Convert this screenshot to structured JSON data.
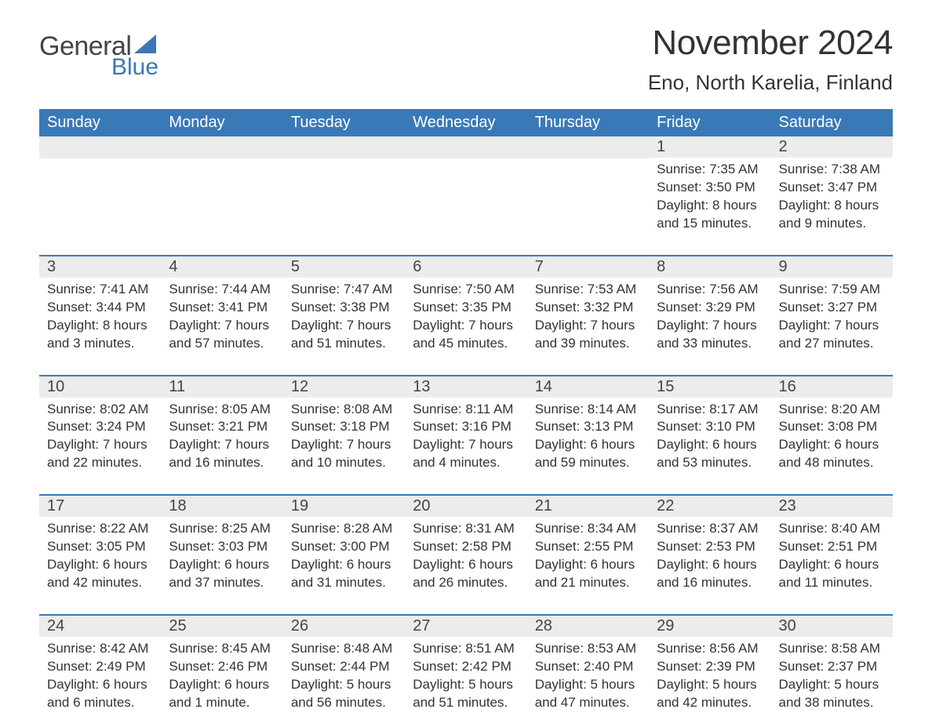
{
  "brand": {
    "general": "General",
    "blue": "Blue",
    "accent_color": "#3a79b7"
  },
  "title": {
    "month": "November 2024",
    "location": "Eno, North Karelia, Finland"
  },
  "header_bg": "#3a79b7",
  "day_num_bg": "#ececec",
  "day_headers": [
    "Sunday",
    "Monday",
    "Tuesday",
    "Wednesday",
    "Thursday",
    "Friday",
    "Saturday"
  ],
  "weeks": [
    [
      {
        "empty": true
      },
      {
        "empty": true
      },
      {
        "empty": true
      },
      {
        "empty": true
      },
      {
        "empty": true
      },
      {
        "num": "1",
        "sunrise": "Sunrise: 7:35 AM",
        "sunset": "Sunset: 3:50 PM",
        "dl1": "Daylight: 8 hours",
        "dl2": "and 15 minutes."
      },
      {
        "num": "2",
        "sunrise": "Sunrise: 7:38 AM",
        "sunset": "Sunset: 3:47 PM",
        "dl1": "Daylight: 8 hours",
        "dl2": "and 9 minutes."
      }
    ],
    [
      {
        "num": "3",
        "sunrise": "Sunrise: 7:41 AM",
        "sunset": "Sunset: 3:44 PM",
        "dl1": "Daylight: 8 hours",
        "dl2": "and 3 minutes."
      },
      {
        "num": "4",
        "sunrise": "Sunrise: 7:44 AM",
        "sunset": "Sunset: 3:41 PM",
        "dl1": "Daylight: 7 hours",
        "dl2": "and 57 minutes."
      },
      {
        "num": "5",
        "sunrise": "Sunrise: 7:47 AM",
        "sunset": "Sunset: 3:38 PM",
        "dl1": "Daylight: 7 hours",
        "dl2": "and 51 minutes."
      },
      {
        "num": "6",
        "sunrise": "Sunrise: 7:50 AM",
        "sunset": "Sunset: 3:35 PM",
        "dl1": "Daylight: 7 hours",
        "dl2": "and 45 minutes."
      },
      {
        "num": "7",
        "sunrise": "Sunrise: 7:53 AM",
        "sunset": "Sunset: 3:32 PM",
        "dl1": "Daylight: 7 hours",
        "dl2": "and 39 minutes."
      },
      {
        "num": "8",
        "sunrise": "Sunrise: 7:56 AM",
        "sunset": "Sunset: 3:29 PM",
        "dl1": "Daylight: 7 hours",
        "dl2": "and 33 minutes."
      },
      {
        "num": "9",
        "sunrise": "Sunrise: 7:59 AM",
        "sunset": "Sunset: 3:27 PM",
        "dl1": "Daylight: 7 hours",
        "dl2": "and 27 minutes."
      }
    ],
    [
      {
        "num": "10",
        "sunrise": "Sunrise: 8:02 AM",
        "sunset": "Sunset: 3:24 PM",
        "dl1": "Daylight: 7 hours",
        "dl2": "and 22 minutes."
      },
      {
        "num": "11",
        "sunrise": "Sunrise: 8:05 AM",
        "sunset": "Sunset: 3:21 PM",
        "dl1": "Daylight: 7 hours",
        "dl2": "and 16 minutes."
      },
      {
        "num": "12",
        "sunrise": "Sunrise: 8:08 AM",
        "sunset": "Sunset: 3:18 PM",
        "dl1": "Daylight: 7 hours",
        "dl2": "and 10 minutes."
      },
      {
        "num": "13",
        "sunrise": "Sunrise: 8:11 AM",
        "sunset": "Sunset: 3:16 PM",
        "dl1": "Daylight: 7 hours",
        "dl2": "and 4 minutes."
      },
      {
        "num": "14",
        "sunrise": "Sunrise: 8:14 AM",
        "sunset": "Sunset: 3:13 PM",
        "dl1": "Daylight: 6 hours",
        "dl2": "and 59 minutes."
      },
      {
        "num": "15",
        "sunrise": "Sunrise: 8:17 AM",
        "sunset": "Sunset: 3:10 PM",
        "dl1": "Daylight: 6 hours",
        "dl2": "and 53 minutes."
      },
      {
        "num": "16",
        "sunrise": "Sunrise: 8:20 AM",
        "sunset": "Sunset: 3:08 PM",
        "dl1": "Daylight: 6 hours",
        "dl2": "and 48 minutes."
      }
    ],
    [
      {
        "num": "17",
        "sunrise": "Sunrise: 8:22 AM",
        "sunset": "Sunset: 3:05 PM",
        "dl1": "Daylight: 6 hours",
        "dl2": "and 42 minutes."
      },
      {
        "num": "18",
        "sunrise": "Sunrise: 8:25 AM",
        "sunset": "Sunset: 3:03 PM",
        "dl1": "Daylight: 6 hours",
        "dl2": "and 37 minutes."
      },
      {
        "num": "19",
        "sunrise": "Sunrise: 8:28 AM",
        "sunset": "Sunset: 3:00 PM",
        "dl1": "Daylight: 6 hours",
        "dl2": "and 31 minutes."
      },
      {
        "num": "20",
        "sunrise": "Sunrise: 8:31 AM",
        "sunset": "Sunset: 2:58 PM",
        "dl1": "Daylight: 6 hours",
        "dl2": "and 26 minutes."
      },
      {
        "num": "21",
        "sunrise": "Sunrise: 8:34 AM",
        "sunset": "Sunset: 2:55 PM",
        "dl1": "Daylight: 6 hours",
        "dl2": "and 21 minutes."
      },
      {
        "num": "22",
        "sunrise": "Sunrise: 8:37 AM",
        "sunset": "Sunset: 2:53 PM",
        "dl1": "Daylight: 6 hours",
        "dl2": "and 16 minutes."
      },
      {
        "num": "23",
        "sunrise": "Sunrise: 8:40 AM",
        "sunset": "Sunset: 2:51 PM",
        "dl1": "Daylight: 6 hours",
        "dl2": "and 11 minutes."
      }
    ],
    [
      {
        "num": "24",
        "sunrise": "Sunrise: 8:42 AM",
        "sunset": "Sunset: 2:49 PM",
        "dl1": "Daylight: 6 hours",
        "dl2": "and 6 minutes."
      },
      {
        "num": "25",
        "sunrise": "Sunrise: 8:45 AM",
        "sunset": "Sunset: 2:46 PM",
        "dl1": "Daylight: 6 hours",
        "dl2": "and 1 minute."
      },
      {
        "num": "26",
        "sunrise": "Sunrise: 8:48 AM",
        "sunset": "Sunset: 2:44 PM",
        "dl1": "Daylight: 5 hours",
        "dl2": "and 56 minutes."
      },
      {
        "num": "27",
        "sunrise": "Sunrise: 8:51 AM",
        "sunset": "Sunset: 2:42 PM",
        "dl1": "Daylight: 5 hours",
        "dl2": "and 51 minutes."
      },
      {
        "num": "28",
        "sunrise": "Sunrise: 8:53 AM",
        "sunset": "Sunset: 2:40 PM",
        "dl1": "Daylight: 5 hours",
        "dl2": "and 47 minutes."
      },
      {
        "num": "29",
        "sunrise": "Sunrise: 8:56 AM",
        "sunset": "Sunset: 2:39 PM",
        "dl1": "Daylight: 5 hours",
        "dl2": "and 42 minutes."
      },
      {
        "num": "30",
        "sunrise": "Sunrise: 8:58 AM",
        "sunset": "Sunset: 2:37 PM",
        "dl1": "Daylight: 5 hours",
        "dl2": "and 38 minutes."
      }
    ]
  ]
}
